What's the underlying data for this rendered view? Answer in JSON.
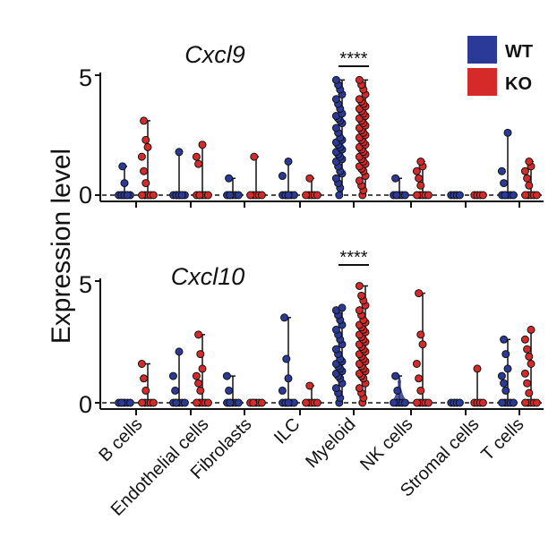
{
  "figure": {
    "ylabel": "Expression level",
    "legend": [
      {
        "name": "WT",
        "color": "#2b3a97"
      },
      {
        "name": "KO",
        "color": "#d42a2a"
      }
    ],
    "categories": [
      "B cells",
      "Endothelial cells",
      "Fibrolasts",
      "ILC",
      "Myeloid",
      "NK cells",
      "Stromal cells",
      "T cells"
    ]
  },
  "chart_data": [
    {
      "type": "scatter",
      "subtype": "violin-dot",
      "title": "Cxcl9",
      "ylim": [
        0,
        5
      ],
      "yticks": [
        0,
        5
      ],
      "categories": [
        "B cells",
        "Endothelial cells",
        "Fibrolasts",
        "ILC",
        "Myeloid",
        "NK cells",
        "Stromal cells",
        "T cells"
      ],
      "series": [
        {
          "name": "WT",
          "color": "#2b3a97",
          "max": [
            1.2,
            1.8,
            0.7,
            1.4,
            4.8,
            0.7,
            0.05,
            2.6
          ],
          "values": [
            [
              0,
              0,
              0,
              0,
              0,
              0,
              0,
              0,
              0.5,
              1.2
            ],
            [
              0,
              0,
              0,
              0,
              0,
              0,
              0,
              0,
              1.8
            ],
            [
              0,
              0,
              0,
              0,
              0,
              0,
              0.7
            ],
            [
              0,
              0,
              0,
              0,
              0,
              0,
              0,
              0.8,
              1.4
            ],
            [
              0,
              0.3,
              0.5,
              0.7,
              0.9,
              1.0,
              1.2,
              1.4,
              1.5,
              1.6,
              1.7,
              1.8,
              1.9,
              2.0,
              2.1,
              2.2,
              2.3,
              2.4,
              2.6,
              2.8,
              3.0,
              3.1,
              3.2,
              3.3,
              3.4,
              3.6,
              3.8,
              4.0,
              4.2,
              4.4,
              4.6,
              4.8
            ],
            [
              0,
              0,
              0,
              0,
              0,
              0,
              0.7
            ],
            [
              0,
              0,
              0,
              0
            ],
            [
              0,
              0,
              0,
              0,
              0,
              0,
              0.5,
              1.0,
              2.6
            ]
          ]
        },
        {
          "name": "KO",
          "color": "#d42a2a",
          "max": [
            3.1,
            2.1,
            1.6,
            0.7,
            4.8,
            1.4,
            0.05,
            1.4
          ],
          "values": [
            [
              0,
              0,
              0,
              0,
              0,
              0.5,
              1.0,
              1.6,
              2.0,
              2.3,
              3.1
            ],
            [
              0,
              0,
              0,
              0,
              0,
              0,
              1.3,
              1.6,
              2.1
            ],
            [
              0,
              0,
              0,
              0,
              0,
              1.6
            ],
            [
              0,
              0,
              0,
              0,
              0,
              0.7
            ],
            [
              0,
              0.2,
              0.4,
              0.6,
              0.8,
              1.0,
              1.1,
              1.2,
              1.3,
              1.4,
              1.5,
              1.6,
              1.7,
              1.8,
              1.9,
              2.0,
              2.1,
              2.2,
              2.3,
              2.4,
              2.5,
              2.6,
              2.7,
              2.8,
              2.9,
              3.0,
              3.1,
              3.2,
              3.3,
              3.4,
              3.5,
              3.6,
              3.7,
              3.8,
              3.9,
              4.0,
              4.2,
              4.4,
              4.6,
              4.8
            ],
            [
              0,
              0,
              0,
              0,
              0,
              0.4,
              0.7,
              1.0,
              1.2,
              1.4
            ],
            [
              0,
              0,
              0,
              0
            ],
            [
              0,
              0,
              0,
              0,
              0,
              0.4,
              0.7,
              1.0,
              1.2,
              1.4
            ]
          ]
        }
      ],
      "significance": {
        "category": "Myeloid",
        "label": "****"
      }
    },
    {
      "type": "scatter",
      "subtype": "violin-dot",
      "title": "Cxcl10",
      "ylim": [
        0,
        5
      ],
      "yticks": [
        0,
        5
      ],
      "categories": [
        "B cells",
        "Endothelial cells",
        "Fibrolasts",
        "ILC",
        "Myeloid",
        "NK cells",
        "Stromal cells",
        "T cells"
      ],
      "series": [
        {
          "name": "WT",
          "color": "#2b3a97",
          "max": [
            0.05,
            2.1,
            1.1,
            3.5,
            3.9,
            1.1,
            0.05,
            2.6
          ],
          "values": [
            [
              0,
              0,
              0,
              0,
              0,
              0
            ],
            [
              0,
              0,
              0,
              0,
              0,
              0,
              0.5,
              1.1,
              2.1
            ],
            [
              0,
              0,
              0,
              0,
              0,
              0,
              0.5,
              1.1
            ],
            [
              0,
              0,
              0,
              0,
              0,
              0,
              0,
              0.5,
              1.0,
              1.8,
              3.5
            ],
            [
              0,
              0.2,
              0.4,
              0.6,
              0.8,
              1.0,
              1.1,
              1.2,
              1.3,
              1.4,
              1.5,
              1.6,
              1.7,
              1.8,
              2.0,
              2.2,
              2.4,
              2.6,
              2.8,
              3.0,
              3.2,
              3.4,
              3.6,
              3.8,
              3.9
            ],
            [
              0,
              0,
              0,
              0,
              0,
              0.5,
              1.1
            ],
            [
              0,
              0,
              0,
              0
            ],
            [
              0,
              0,
              0,
              0,
              0,
              0.5,
              0.8,
              1.1,
              1.4,
              2.0,
              2.6
            ]
          ]
        },
        {
          "name": "KO",
          "color": "#d42a2a",
          "max": [
            1.6,
            2.8,
            0.05,
            0.7,
            4.8,
            4.5,
            1.4,
            3.0
          ],
          "values": [
            [
              0,
              0,
              0,
              0,
              0,
              0.5,
              1.0,
              1.6
            ],
            [
              0,
              0,
              0,
              0,
              0,
              0.5,
              0.8,
              1.1,
              1.4,
              2.0,
              2.8
            ],
            [
              0,
              0,
              0,
              0,
              0,
              0
            ],
            [
              0,
              0,
              0,
              0,
              0,
              0.7
            ],
            [
              0,
              0.2,
              0.4,
              0.6,
              0.8,
              1.0,
              1.1,
              1.2,
              1.3,
              1.4,
              1.5,
              1.6,
              1.7,
              1.8,
              1.9,
              2.0,
              2.1,
              2.2,
              2.3,
              2.4,
              2.5,
              2.6,
              2.7,
              2.8,
              2.9,
              3.0,
              3.1,
              3.2,
              3.3,
              3.4,
              3.6,
              3.8,
              4.0,
              4.2,
              4.4,
              4.8
            ],
            [
              0,
              0,
              0,
              0,
              0,
              0.5,
              1.0,
              1.6,
              2.4,
              2.8,
              4.5
            ],
            [
              0,
              0,
              0,
              0,
              1.4
            ],
            [
              0,
              0,
              0,
              0,
              0,
              0.4,
              0.8,
              1.2,
              1.6,
              1.9,
              2.2,
              2.6,
              3.0
            ]
          ]
        }
      ],
      "significance": {
        "category": "Myeloid",
        "label": "****"
      }
    }
  ]
}
